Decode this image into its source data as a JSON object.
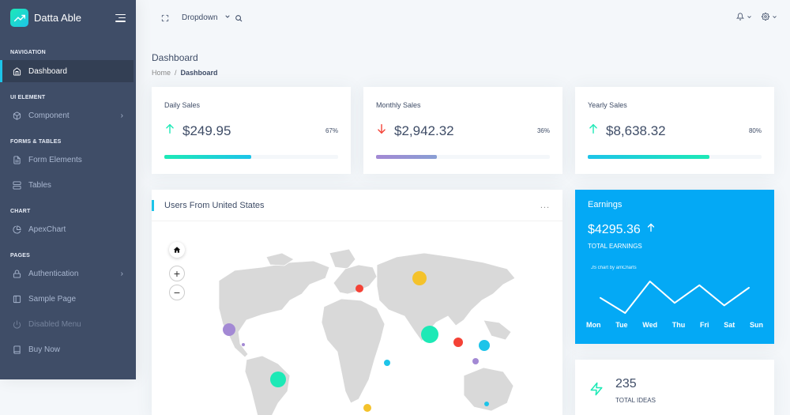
{
  "brand": {
    "name": "Datta Able"
  },
  "nav": {
    "captions": [
      "NAVIGATION",
      "UI ELEMENT",
      "FORMS & TABLES",
      "CHART",
      "PAGES"
    ],
    "items": [
      {
        "label": "Dashboard",
        "icon": "home-icon"
      },
      {
        "label": "Component",
        "icon": "box-icon"
      },
      {
        "label": "Form Elements",
        "icon": "file-text-icon"
      },
      {
        "label": "Tables",
        "icon": "server-icon"
      },
      {
        "label": "ApexChart",
        "icon": "pie-chart-icon"
      },
      {
        "label": "Authentication",
        "icon": "lock-icon"
      },
      {
        "label": "Sample Page",
        "icon": "sidebar-icon"
      },
      {
        "label": "Disabled Menu",
        "icon": "power-icon"
      },
      {
        "label": "Buy Now",
        "icon": "book-icon"
      }
    ]
  },
  "header": {
    "dropdown_label": "Dropdown"
  },
  "page": {
    "title": "Dashboard",
    "breadcrumb_home": "Home",
    "breadcrumb_sep": "/",
    "breadcrumb_current": "Dashboard"
  },
  "stats": [
    {
      "label": "Daily Sales",
      "value": "$249.95",
      "pct": "67%",
      "progress": 50,
      "trend": "up",
      "color": "#1de9b6"
    },
    {
      "label": "Monthly Sales",
      "value": "$2,942.32",
      "pct": "36%",
      "progress": 35,
      "trend": "down",
      "color": "#a389d4"
    },
    {
      "label": "Yearly Sales",
      "value": "$8,638.32",
      "pct": "80%",
      "progress": 70,
      "trend": "up",
      "color": "#1de9b6"
    }
  ],
  "map": {
    "title": "Users From United States",
    "more": "..."
  },
  "earnings": {
    "title": "Earnings",
    "value": "$4295.36",
    "subtitle": "TOTAL EARNINGS",
    "credit": "JS chart by amCharts",
    "days": [
      "Mon",
      "Tue",
      "Wed",
      "Thu",
      "Fri",
      "Sat",
      "Sun"
    ],
    "values": [
      22,
      10,
      35,
      18,
      32,
      16,
      30
    ]
  },
  "ideas": {
    "value": "235",
    "label": "TOTAL IDEAS"
  },
  "colors": {
    "sidebar": "#3f4d67",
    "accent": "#04a9f5",
    "green": "#1de9b6",
    "blue": "#1dc4e9",
    "red": "#f44236",
    "purple": "#a389d4",
    "yellow": "#f4c22b"
  }
}
